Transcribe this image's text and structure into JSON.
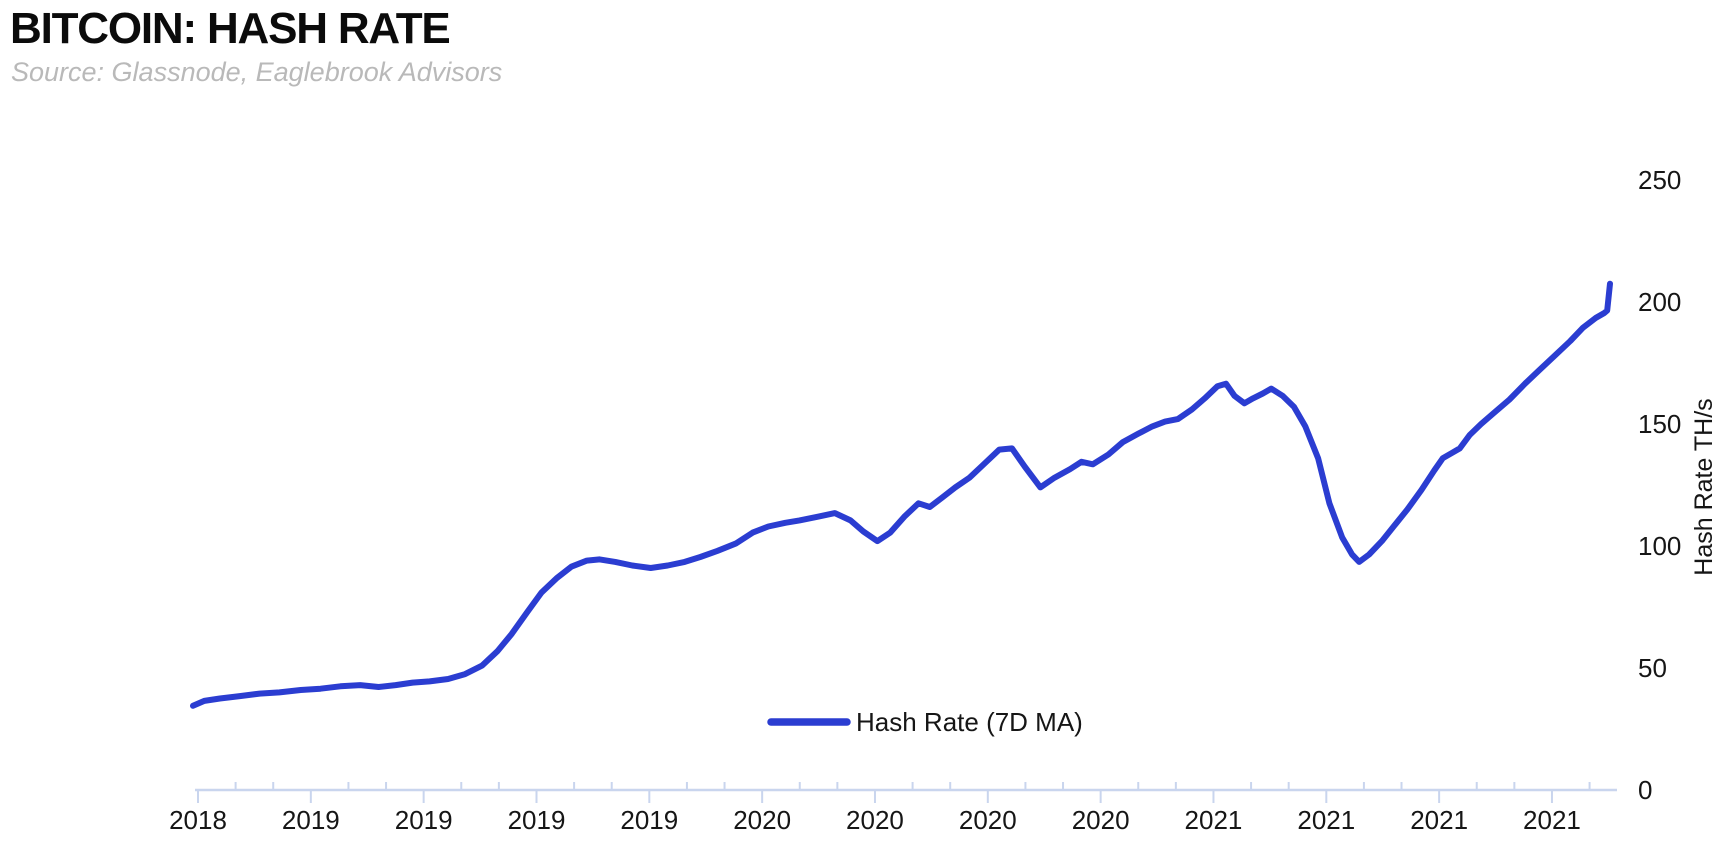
{
  "header": {
    "title": "BITCOIN: HASH RATE",
    "source": "Source: Glassnode, Eaglebrook Advisors"
  },
  "colors": {
    "line": "#2b3dd1",
    "axis": "#c9d5ee",
    "title_text": "#0b0b0b",
    "source_text": "#b9b9b9",
    "tick_text": "#161616",
    "background": "#ffffff"
  },
  "chart_data": {
    "type": "line",
    "title": "BITCOIN: HASH RATE",
    "source": "Source: Glassnode, Eaglebrook Advisors",
    "ylabel": "Hash Rate TH/s",
    "ylabel_side": "right",
    "ylim": [
      0,
      250
    ],
    "yticks": [
      0,
      50,
      100,
      150,
      200,
      250
    ],
    "grid": false,
    "x_axis": {
      "labels": [
        "2018",
        "2019",
        "2019",
        "2019",
        "2019",
        "2020",
        "2020",
        "2020",
        "2020",
        "2021",
        "2021",
        "2021",
        "2021"
      ],
      "minor_ticks_per_major": 3
    },
    "legend": {
      "label": "Hash Rate (7D MA)",
      "position": "bottom-center"
    },
    "series": [
      {
        "name": "Hash Rate (7D MA)",
        "color": "#2b3dd1",
        "points": [
          [
            0.0,
            34.5
          ],
          [
            0.008,
            36.5
          ],
          [
            0.019,
            37.5
          ],
          [
            0.033,
            38.5
          ],
          [
            0.047,
            39.5
          ],
          [
            0.061,
            40
          ],
          [
            0.076,
            41
          ],
          [
            0.09,
            41.5
          ],
          [
            0.104,
            42.5
          ],
          [
            0.118,
            43
          ],
          [
            0.131,
            42.2
          ],
          [
            0.143,
            43
          ],
          [
            0.155,
            44
          ],
          [
            0.167,
            44.5
          ],
          [
            0.18,
            45.5
          ],
          [
            0.192,
            47.5
          ],
          [
            0.204,
            51
          ],
          [
            0.215,
            57
          ],
          [
            0.225,
            64
          ],
          [
            0.236,
            73
          ],
          [
            0.246,
            81
          ],
          [
            0.257,
            87
          ],
          [
            0.267,
            91.5
          ],
          [
            0.278,
            94
          ],
          [
            0.287,
            94.5
          ],
          [
            0.298,
            93.5
          ],
          [
            0.31,
            92
          ],
          [
            0.323,
            91
          ],
          [
            0.335,
            92
          ],
          [
            0.347,
            93.5
          ],
          [
            0.358,
            95.5
          ],
          [
            0.37,
            98
          ],
          [
            0.383,
            101
          ],
          [
            0.395,
            105.5
          ],
          [
            0.406,
            108
          ],
          [
            0.418,
            109.5
          ],
          [
            0.428,
            110.5
          ],
          [
            0.441,
            112
          ],
          [
            0.453,
            113.5
          ],
          [
            0.464,
            110.5
          ],
          [
            0.473,
            106
          ],
          [
            0.483,
            102
          ],
          [
            0.492,
            105.5
          ],
          [
            0.502,
            112
          ],
          [
            0.512,
            117.5
          ],
          [
            0.52,
            116
          ],
          [
            0.529,
            120
          ],
          [
            0.538,
            124
          ],
          [
            0.548,
            128
          ],
          [
            0.559,
            134
          ],
          [
            0.569,
            139.5
          ],
          [
            0.578,
            140
          ],
          [
            0.587,
            132.5
          ],
          [
            0.598,
            124
          ],
          [
            0.608,
            128
          ],
          [
            0.619,
            131.5
          ],
          [
            0.627,
            134.5
          ],
          [
            0.635,
            133.5
          ],
          [
            0.646,
            137.5
          ],
          [
            0.656,
            142.5
          ],
          [
            0.667,
            146
          ],
          [
            0.677,
            149
          ],
          [
            0.686,
            151
          ],
          [
            0.695,
            152
          ],
          [
            0.705,
            156
          ],
          [
            0.714,
            160.5
          ],
          [
            0.723,
            165.5
          ],
          [
            0.729,
            166.5
          ],
          [
            0.735,
            161.5
          ],
          [
            0.742,
            158.5
          ],
          [
            0.748,
            160.5
          ],
          [
            0.755,
            162.5
          ],
          [
            0.761,
            164.5
          ],
          [
            0.769,
            161.5
          ],
          [
            0.777,
            157
          ],
          [
            0.785,
            149
          ],
          [
            0.794,
            136
          ],
          [
            0.802,
            117.5
          ],
          [
            0.811,
            103.5
          ],
          [
            0.818,
            96.5
          ],
          [
            0.823,
            93.5
          ],
          [
            0.83,
            96.5
          ],
          [
            0.839,
            102
          ],
          [
            0.848,
            108.5
          ],
          [
            0.857,
            115
          ],
          [
            0.867,
            123
          ],
          [
            0.876,
            131
          ],
          [
            0.882,
            136
          ],
          [
            0.888,
            138
          ],
          [
            0.894,
            140
          ],
          [
            0.901,
            145.5
          ],
          [
            0.909,
            150
          ],
          [
            0.918,
            154.5
          ],
          [
            0.929,
            160
          ],
          [
            0.94,
            166.5
          ],
          [
            0.95,
            172
          ],
          [
            0.961,
            178
          ],
          [
            0.972,
            184
          ],
          [
            0.981,
            189.5
          ],
          [
            0.99,
            193.5
          ],
          [
            0.996,
            195.5
          ],
          [
            0.998,
            196.5
          ],
          [
            1.0,
            207.5
          ]
        ]
      }
    ]
  }
}
